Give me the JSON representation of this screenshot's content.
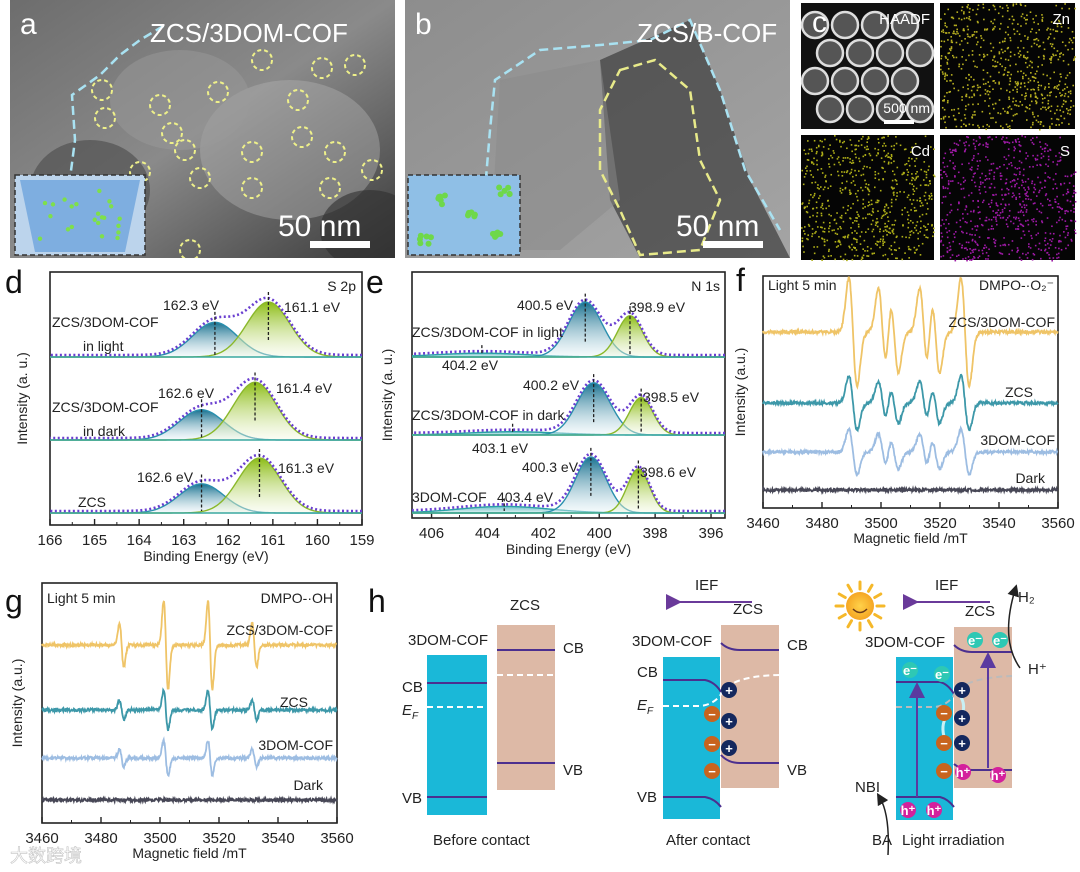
{
  "panels": {
    "a": {
      "label": "a",
      "title": "ZCS/3DOM-COF",
      "scale": "50 nm"
    },
    "b": {
      "label": "b",
      "title": "ZCS/B-COF",
      "scale": "50 nm"
    },
    "c": {
      "label": "c",
      "tiles": [
        "HAADF",
        "Zn",
        "Cd",
        "S"
      ],
      "scale": "500 nm"
    },
    "h": {
      "label": "h",
      "before": {
        "caption": "Before contact",
        "cof": "3DOM-COF",
        "zcs": "ZCS",
        "cb_left": "CB",
        "ef": "E",
        "ef_sub": "F",
        "vb_left": "VB",
        "cb_right": "CB",
        "vb_right": "VB"
      },
      "after": {
        "caption": "After contact",
        "ief": "IEF",
        "cof": "3DOM-COF",
        "zcs": "ZCS",
        "cb_left": "CB",
        "ef": "E",
        "ef_sub": "F",
        "vb_left": "VB",
        "cb_right": "CB",
        "vb_right": "VB",
        "plus": "+",
        "minus": "−"
      },
      "light": {
        "caption": "Light irradiation",
        "ief": "IEF",
        "cof": "3DOM-COF",
        "zcs": "ZCS",
        "h2": "H₂",
        "hplus": "H⁺",
        "nbi": "NBI",
        "ba": "BA",
        "electron": "e⁻",
        "hole": "h⁺",
        "plus": "+",
        "minus": "−"
      }
    }
  },
  "watermark": "大数跨境",
  "colors": {
    "blue_peak": "#1f86a8",
    "green_peak": "#96c21e",
    "envelope": "#6a3fd0",
    "cof_band": "#1ab8d8",
    "zcs_band": "#ddb9a6",
    "band_line": "#4b2f8f",
    "epr_composite": "#efc467",
    "epr_zcs": "#3d98a9",
    "epr_cof": "#9dbde2",
    "epr_dark": "#474756"
  },
  "chart_data": [
    {
      "panel": "d",
      "type": "line",
      "title": "S 2p",
      "xlabel": "Binding Energy (eV)",
      "ylabel": "Intensity (a. u.)",
      "xlim": [
        166,
        159
      ],
      "xticks": [
        "166",
        "165",
        "164",
        "163",
        "162",
        "161",
        "160",
        "159"
      ],
      "series": [
        {
          "name": [
            "ZCS/3DOM-COF",
            "in light"
          ],
          "peaks": [
            {
              "center": 162.3,
              "label": "162.3 eV",
              "amp": 0.63,
              "width": 0.5,
              "component": "blue"
            },
            {
              "center": 161.1,
              "label": "161.1 eV",
              "amp": 1.0,
              "width": 0.48,
              "component": "green"
            }
          ]
        },
        {
          "name": [
            "ZCS/3DOM-COF",
            "in dark"
          ],
          "peaks": [
            {
              "center": 162.6,
              "label": "162.6 eV",
              "amp": 0.55,
              "width": 0.5,
              "component": "blue"
            },
            {
              "center": 161.4,
              "label": "161.4 eV",
              "amp": 1.05,
              "width": 0.48,
              "component": "green"
            }
          ]
        },
        {
          "name": [
            "ZCS"
          ],
          "peaks": [
            {
              "center": 162.6,
              "label": "162.6 eV",
              "amp": 0.53,
              "width": 0.5,
              "component": "blue"
            },
            {
              "center": 161.3,
              "label": "161.3 eV",
              "amp": 1.0,
              "width": 0.48,
              "component": "green"
            }
          ]
        }
      ]
    },
    {
      "panel": "e",
      "type": "line",
      "title": "N 1s",
      "xlabel": "Binding Energy (eV)",
      "ylabel": "Intensity (a. u.)",
      "xlim": [
        406.7,
        395.5
      ],
      "xticks": [
        "406",
        "404",
        "402",
        "400",
        "398",
        "396"
      ],
      "series": [
        {
          "name": [
            "ZCS/3DOM-COF in light"
          ],
          "peaks": [
            {
              "center": 404.2,
              "label": "404.2 eV",
              "amp": 0.07,
              "width": 1.6,
              "component": "teal"
            },
            {
              "center": 400.5,
              "label": "400.5 eV",
              "amp": 1.0,
              "width": 0.6,
              "component": "blue"
            },
            {
              "center": 398.9,
              "label": "398.9 eV",
              "amp": 0.75,
              "width": 0.45,
              "component": "green"
            }
          ]
        },
        {
          "name": [
            "ZCS/3DOM-COF in dark"
          ],
          "peaks": [
            {
              "center": 403.1,
              "label": "403.1 eV",
              "amp": 0.06,
              "width": 1.6,
              "component": "teal"
            },
            {
              "center": 400.2,
              "label": "400.2 eV",
              "amp": 0.95,
              "width": 0.6,
              "component": "blue"
            },
            {
              "center": 398.5,
              "label": "398.5 eV",
              "amp": 0.68,
              "width": 0.42,
              "component": "green"
            }
          ]
        },
        {
          "name": [
            "3DOM-COF"
          ],
          "peaks": [
            {
              "center": 403.4,
              "label": "403.4 eV",
              "amp": 0.12,
              "width": 1.6,
              "component": "teal"
            },
            {
              "center": 400.3,
              "label": "400.3 eV",
              "amp": 1.02,
              "width": 0.55,
              "component": "blue"
            },
            {
              "center": 398.6,
              "label": "398.6 eV",
              "amp": 0.8,
              "width": 0.4,
              "component": "green"
            }
          ]
        }
      ]
    },
    {
      "panel": "f",
      "type": "line",
      "title": "DMPO-·O₂⁻",
      "note": "Light 5 min",
      "xlabel": "Magnetic field /mT",
      "ylabel": "Intensity (a.u.)",
      "xlim": [
        3460,
        3560
      ],
      "xticks": [
        "3460",
        "3480",
        "3500",
        "3520",
        "3540",
        "3560"
      ],
      "lines": [
        3490.5,
        3500.5,
        3504.5,
        3514.5,
        3518.5,
        3528.5
      ],
      "line_amps": [
        1,
        0.8,
        0.75,
        0.8,
        0.75,
        1
      ],
      "series": [
        {
          "name": "ZCS/3DOM-COF",
          "intensity": 1.0
        },
        {
          "name": "ZCS",
          "intensity": 0.5
        },
        {
          "name": "3DOM-COF",
          "intensity": 0.42
        },
        {
          "name": "Dark",
          "intensity": 0
        }
      ]
    },
    {
      "panel": "g",
      "type": "line",
      "title": "DMPO-·OH",
      "note": "Light 5 min",
      "xlabel": "Magnetic field /mT",
      "ylabel": "Intensity (a.u.)",
      "xlim": [
        3460,
        3560
      ],
      "xticks": [
        "3460",
        "3480",
        "3500",
        "3520",
        "3540",
        "3560"
      ],
      "lines": [
        3487,
        3502,
        3517,
        3532
      ],
      "line_amps": [
        1,
        2,
        2,
        1
      ],
      "series": [
        {
          "name": "ZCS/3DOM-COF",
          "intensity": 1.0
        },
        {
          "name": "ZCS",
          "intensity": 0.45
        },
        {
          "name": "3DOM-COF",
          "intensity": 0.4
        },
        {
          "name": "Dark",
          "intensity": 0
        }
      ]
    }
  ]
}
